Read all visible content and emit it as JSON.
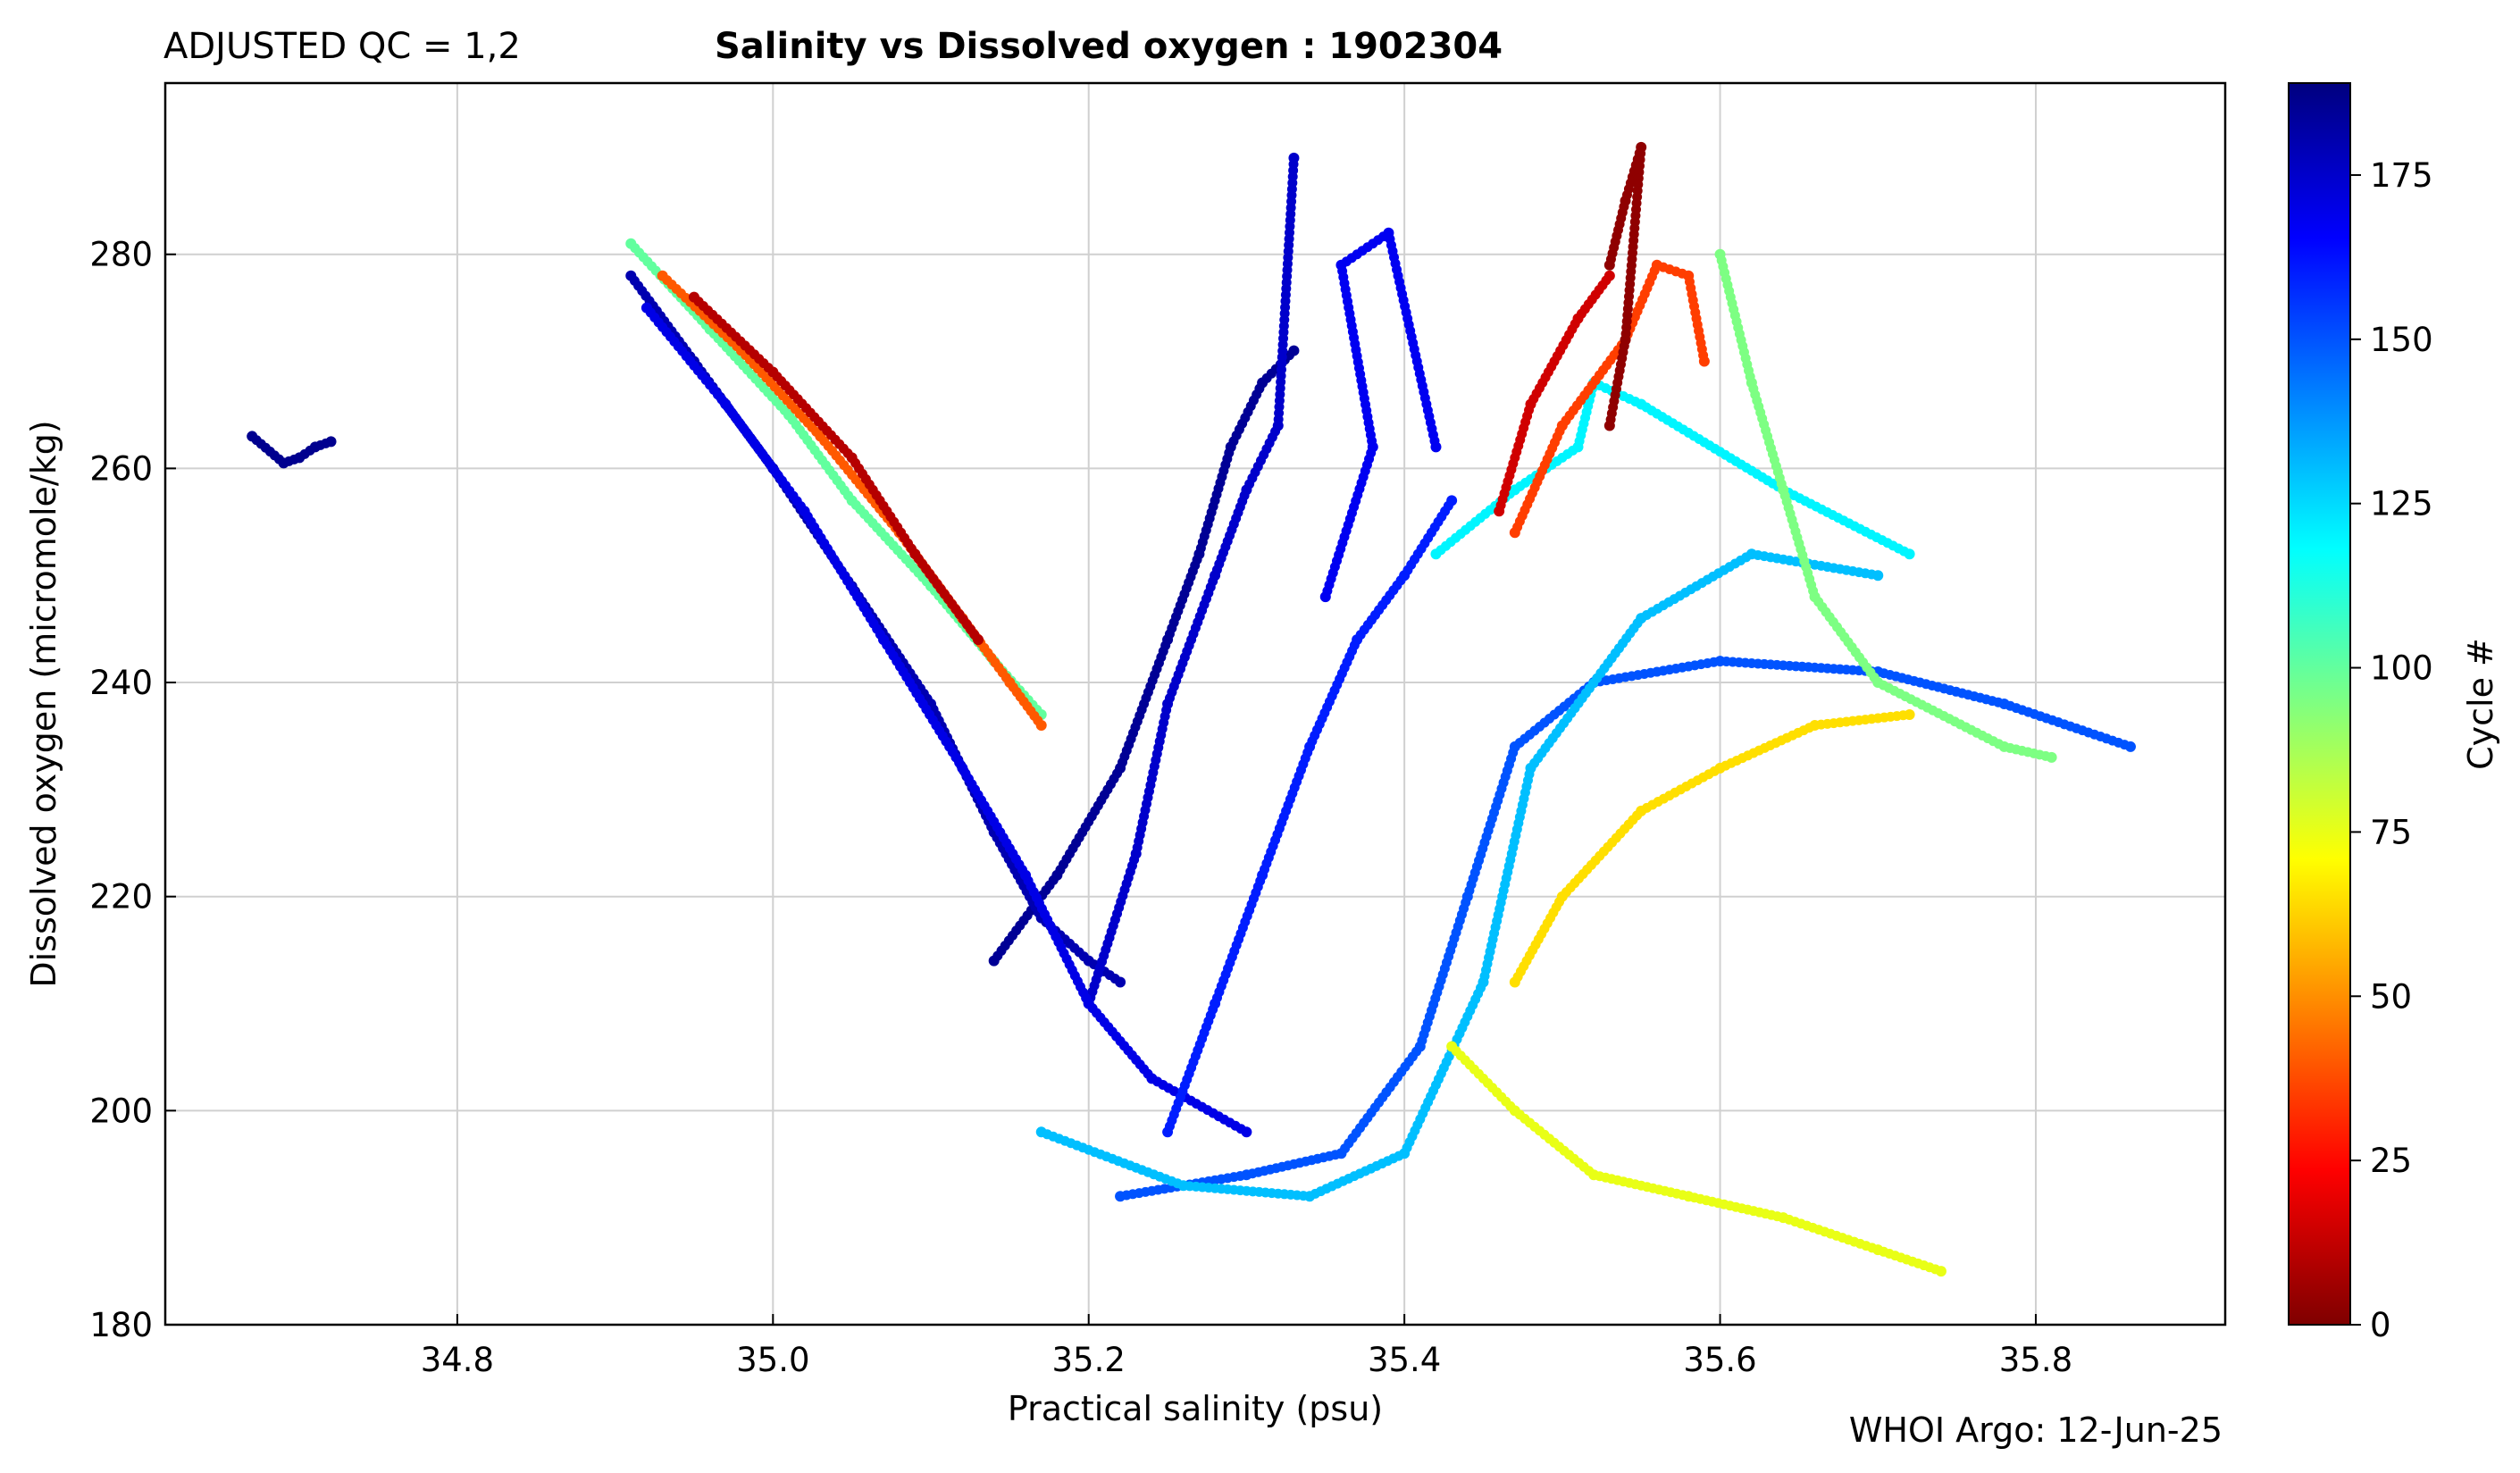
{
  "header": {
    "qc_label": "ADJUSTED QC = 1,2",
    "title": "Salinity vs Dissolved oxygen : 1902304"
  },
  "footer": {
    "credit": "WHOI Argo: 12-Jun-25"
  },
  "colormap": {
    "name": "jet",
    "stops": [
      "#7f0000",
      "#ff0000",
      "#ff8000",
      "#ffff00",
      "#80ff80",
      "#00ffff",
      "#0080ff",
      "#0000ff",
      "#00007f"
    ]
  },
  "chart_data": {
    "type": "scatter",
    "title": "Salinity vs Dissolved oxygen : 1902304",
    "xlabel": "Practical salinity  (psu)",
    "ylabel": "Dissolved oxygen  (micromole/kg)",
    "xlim": [
      34.615,
      35.92
    ],
    "ylim": [
      180,
      296
    ],
    "xticks": [
      34.8,
      35.0,
      35.2,
      35.4,
      35.6,
      35.8
    ],
    "xtick_labels": [
      "34.8",
      "35.0",
      "35.2",
      "35.4",
      "35.6",
      "35.8"
    ],
    "yticks": [
      180,
      200,
      220,
      240,
      260,
      280
    ],
    "ytick_labels": [
      "180",
      "200",
      "220",
      "240",
      "260",
      "280"
    ],
    "grid": true,
    "colorbar": {
      "label": "Cycle #",
      "range": [
        0,
        189
      ],
      "ticks": [
        0,
        25,
        50,
        75,
        100,
        125,
        150,
        175
      ],
      "tick_labels": [
        "0",
        "25",
        "50",
        "75",
        "100",
        "125",
        "150",
        "175"
      ]
    },
    "series": [
      {
        "cycle": 186,
        "points": [
          [
            34.67,
            263
          ],
          [
            34.69,
            260.5
          ],
          [
            34.7,
            261
          ],
          [
            34.71,
            262
          ],
          [
            34.72,
            262.5
          ]
        ]
      },
      {
        "cycle": 180,
        "points": [
          [
            34.91,
            278
          ],
          [
            34.95,
            270
          ],
          [
            35.0,
            260
          ],
          [
            35.05,
            249
          ],
          [
            35.1,
            238
          ],
          [
            35.14,
            226
          ],
          [
            35.17,
            218
          ],
          [
            35.2,
            214
          ],
          [
            35.22,
            212
          ]
        ]
      },
      {
        "cycle": 170,
        "points": [
          [
            34.92,
            275
          ],
          [
            34.97,
            266
          ],
          [
            35.02,
            256
          ],
          [
            35.07,
            244
          ],
          [
            35.12,
            232
          ],
          [
            35.16,
            222
          ],
          [
            35.2,
            210
          ],
          [
            35.24,
            203
          ],
          [
            35.3,
            198
          ]
        ]
      },
      {
        "cycle": 40,
        "points": [
          [
            34.93,
            278
          ],
          [
            34.98,
            271
          ],
          [
            35.03,
            263
          ],
          [
            35.08,
            254
          ],
          [
            35.12,
            246
          ],
          [
            35.15,
            240
          ],
          [
            35.17,
            236
          ]
        ]
      },
      {
        "cycle": 10,
        "points": [
          [
            34.95,
            276
          ],
          [
            35.0,
            269
          ],
          [
            35.05,
            261
          ],
          [
            35.09,
            252
          ],
          [
            35.13,
            244
          ]
        ]
      },
      {
        "cycle": 100,
        "points": [
          [
            34.91,
            281
          ],
          [
            34.96,
            273
          ],
          [
            35.01,
            265
          ],
          [
            35.05,
            257
          ],
          [
            35.1,
            249
          ],
          [
            35.14,
            242
          ],
          [
            35.17,
            237
          ]
        ]
      },
      {
        "cycle": 185,
        "points": [
          [
            35.14,
            214
          ],
          [
            35.18,
            222
          ],
          [
            35.22,
            232
          ],
          [
            35.25,
            244
          ],
          [
            35.27,
            252
          ],
          [
            35.29,
            262
          ],
          [
            35.31,
            268
          ],
          [
            35.33,
            271
          ]
        ]
      },
      {
        "cycle": 175,
        "points": [
          [
            35.2,
            210
          ],
          [
            35.23,
            224
          ],
          [
            35.25,
            238
          ],
          [
            35.28,
            250
          ],
          [
            35.3,
            258
          ],
          [
            35.32,
            264
          ],
          [
            35.33,
            289
          ]
        ]
      },
      {
        "cycle": 168,
        "points": [
          [
            35.35,
            248
          ],
          [
            35.38,
            262
          ],
          [
            35.36,
            279
          ],
          [
            35.39,
            282
          ],
          [
            35.42,
            262
          ]
        ]
      },
      {
        "cycle": 160,
        "points": [
          [
            35.25,
            198
          ],
          [
            35.28,
            210
          ],
          [
            35.31,
            222
          ],
          [
            35.34,
            234
          ],
          [
            35.37,
            244
          ],
          [
            35.4,
            250
          ],
          [
            35.43,
            257
          ]
        ]
      },
      {
        "cycle": 150,
        "points": [
          [
            35.22,
            192
          ],
          [
            35.3,
            194
          ],
          [
            35.36,
            196
          ],
          [
            35.41,
            206
          ],
          [
            35.44,
            220
          ],
          [
            35.47,
            234
          ],
          [
            35.52,
            240
          ],
          [
            35.6,
            242
          ],
          [
            35.7,
            241
          ],
          [
            35.78,
            238
          ],
          [
            35.86,
            234
          ]
        ]
      },
      {
        "cycle": 130,
        "points": [
          [
            35.17,
            198
          ],
          [
            35.26,
            193
          ],
          [
            35.34,
            192
          ],
          [
            35.4,
            196
          ],
          [
            35.45,
            212
          ],
          [
            35.48,
            232
          ],
          [
            35.55,
            246
          ],
          [
            35.62,
            252
          ],
          [
            35.7,
            250
          ]
        ]
      },
      {
        "cycle": 120,
        "points": [
          [
            35.42,
            252
          ],
          [
            35.47,
            258
          ],
          [
            35.51,
            262
          ],
          [
            35.52,
            268
          ],
          [
            35.55,
            266
          ],
          [
            35.64,
            258
          ],
          [
            35.72,
            252
          ]
        ]
      },
      {
        "cycle": 95,
        "points": [
          [
            35.6,
            280
          ],
          [
            35.62,
            268
          ],
          [
            35.64,
            258
          ],
          [
            35.66,
            248
          ],
          [
            35.7,
            240
          ],
          [
            35.78,
            234
          ],
          [
            35.81,
            233
          ]
        ]
      },
      {
        "cycle": 75,
        "points": [
          [
            35.43,
            206
          ],
          [
            35.47,
            200
          ],
          [
            35.52,
            194
          ],
          [
            35.58,
            192
          ],
          [
            35.64,
            190
          ],
          [
            35.7,
            187
          ],
          [
            35.74,
            185
          ]
        ]
      },
      {
        "cycle": 65,
        "points": [
          [
            35.47,
            212
          ],
          [
            35.5,
            220
          ],
          [
            35.55,
            228
          ],
          [
            35.6,
            232
          ],
          [
            35.66,
            236
          ],
          [
            35.72,
            237
          ]
        ]
      },
      {
        "cycle": 35,
        "points": [
          [
            35.47,
            254
          ],
          [
            35.5,
            264
          ],
          [
            35.54,
            272
          ],
          [
            35.56,
            279
          ],
          [
            35.58,
            278
          ],
          [
            35.59,
            270
          ]
        ]
      },
      {
        "cycle": 15,
        "points": [
          [
            35.46,
            256
          ],
          [
            35.48,
            266
          ],
          [
            35.51,
            274
          ],
          [
            35.53,
            278
          ]
        ]
      },
      {
        "cycle": 3,
        "points": [
          [
            35.53,
            279
          ],
          [
            35.54,
            285
          ],
          [
            35.55,
            290
          ],
          [
            35.54,
            272
          ],
          [
            35.53,
            264
          ]
        ]
      }
    ]
  }
}
